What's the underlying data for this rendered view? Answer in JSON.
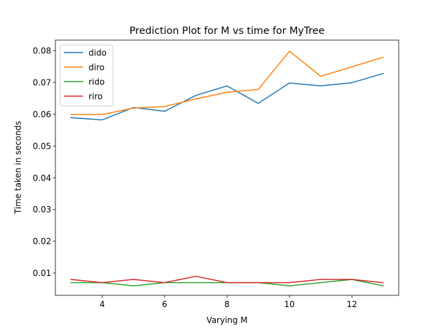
{
  "chart_data": {
    "type": "line",
    "title": "Prediction Plot for M vs time for MyTree",
    "xlabel": "Varying M",
    "ylabel": "Time taken in seconds",
    "x": [
      3,
      4,
      5,
      6,
      7,
      8,
      9,
      10,
      11,
      12,
      13
    ],
    "xlim": [
      2.5,
      13.5
    ],
    "ylim": [
      0.003,
      0.0833
    ],
    "xticks": [
      4,
      6,
      8,
      10,
      12
    ],
    "yticks": [
      0.01,
      0.02,
      0.03,
      0.04,
      0.05,
      0.06,
      0.07,
      0.08
    ],
    "xtick_labels": [
      "4",
      "6",
      "8",
      "10",
      "12"
    ],
    "ytick_labels": [
      "0.01",
      "0.02",
      "0.03",
      "0.04",
      "0.05",
      "0.06",
      "0.07",
      "0.08"
    ],
    "grid": false,
    "legend_position": "top-left",
    "series": [
      {
        "name": "dido",
        "color": "#1f77b4",
        "values": [
          0.0589,
          0.0582,
          0.0621,
          0.0609,
          0.0659,
          0.0689,
          0.0634,
          0.0698,
          0.0689,
          0.0699,
          0.0728
        ]
      },
      {
        "name": "diro",
        "color": "#ff7f0e",
        "values": [
          0.0599,
          0.0599,
          0.0619,
          0.0624,
          0.0648,
          0.0669,
          0.0678,
          0.0798,
          0.0719,
          0.0749,
          0.0779
        ]
      },
      {
        "name": "rido",
        "color": "#2ca02c",
        "values": [
          0.007,
          0.007,
          0.006,
          0.007,
          0.007,
          0.007,
          0.007,
          0.006,
          0.007,
          0.008,
          0.006
        ]
      },
      {
        "name": "riro",
        "color": "#d62728",
        "values": [
          0.008,
          0.007,
          0.008,
          0.007,
          0.009,
          0.007,
          0.007,
          0.007,
          0.008,
          0.008,
          0.007
        ]
      }
    ]
  }
}
